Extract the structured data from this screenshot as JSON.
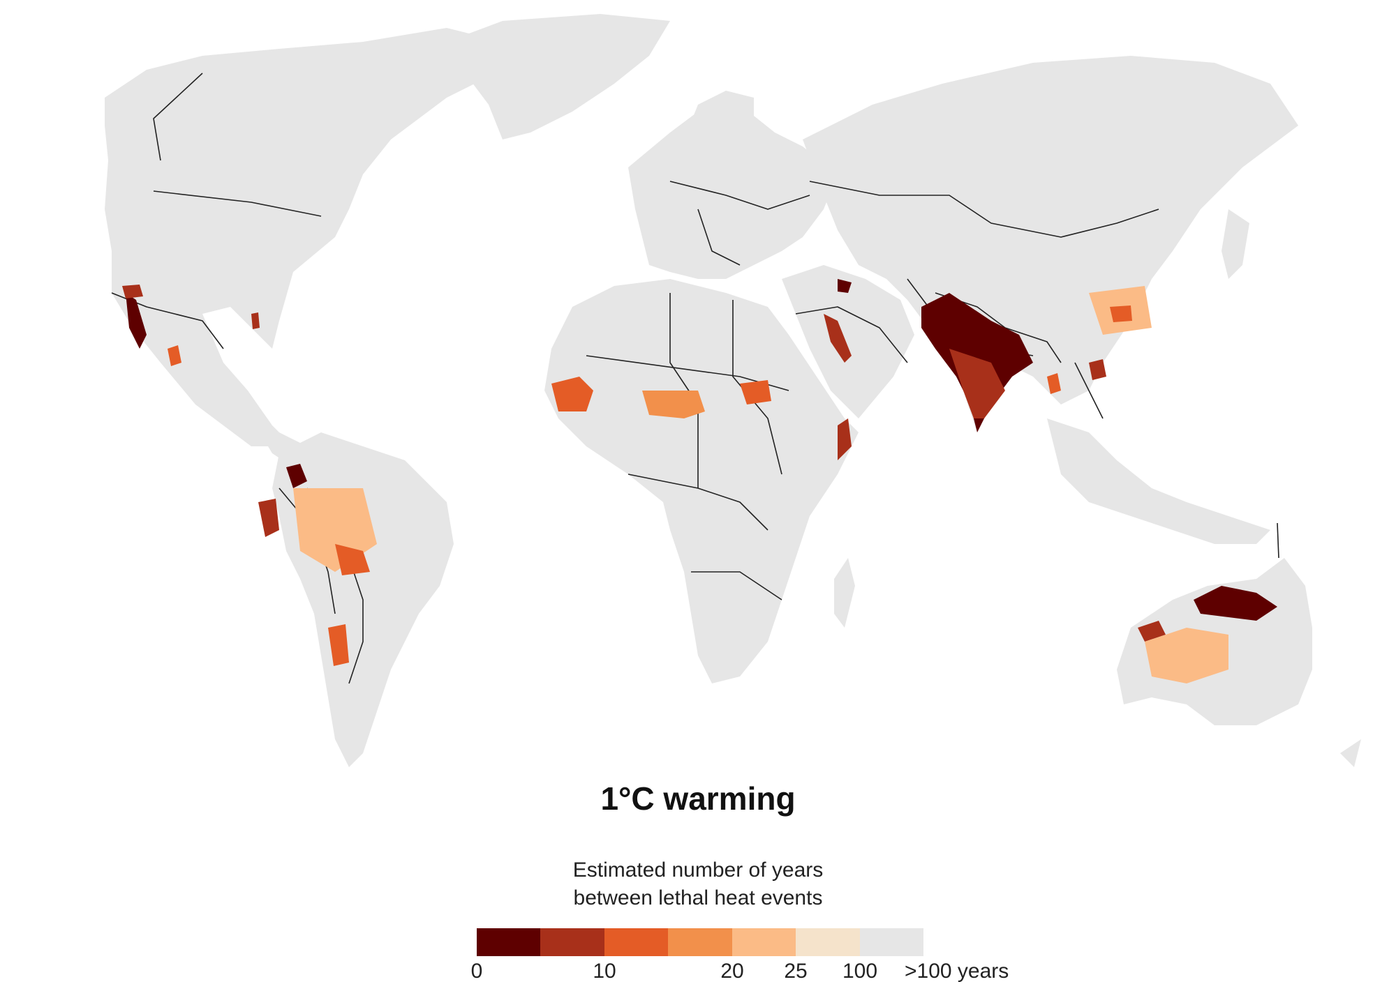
{
  "title": "1°C warming",
  "legend": {
    "title_line1": "Estimated number of years",
    "title_line2": "between lethal heat events",
    "colors": [
      "#5e0000",
      "#a8301a",
      "#e45c26",
      "#f2904b",
      "#fbbb86",
      "#f5e3cb",
      "#e6e6e6"
    ],
    "tick_labels": [
      "0",
      "10",
      "20",
      "25",
      "100",
      ">100 years"
    ]
  },
  "map": {
    "land_color": "#e6e6e6",
    "border_color": "#222222"
  }
}
